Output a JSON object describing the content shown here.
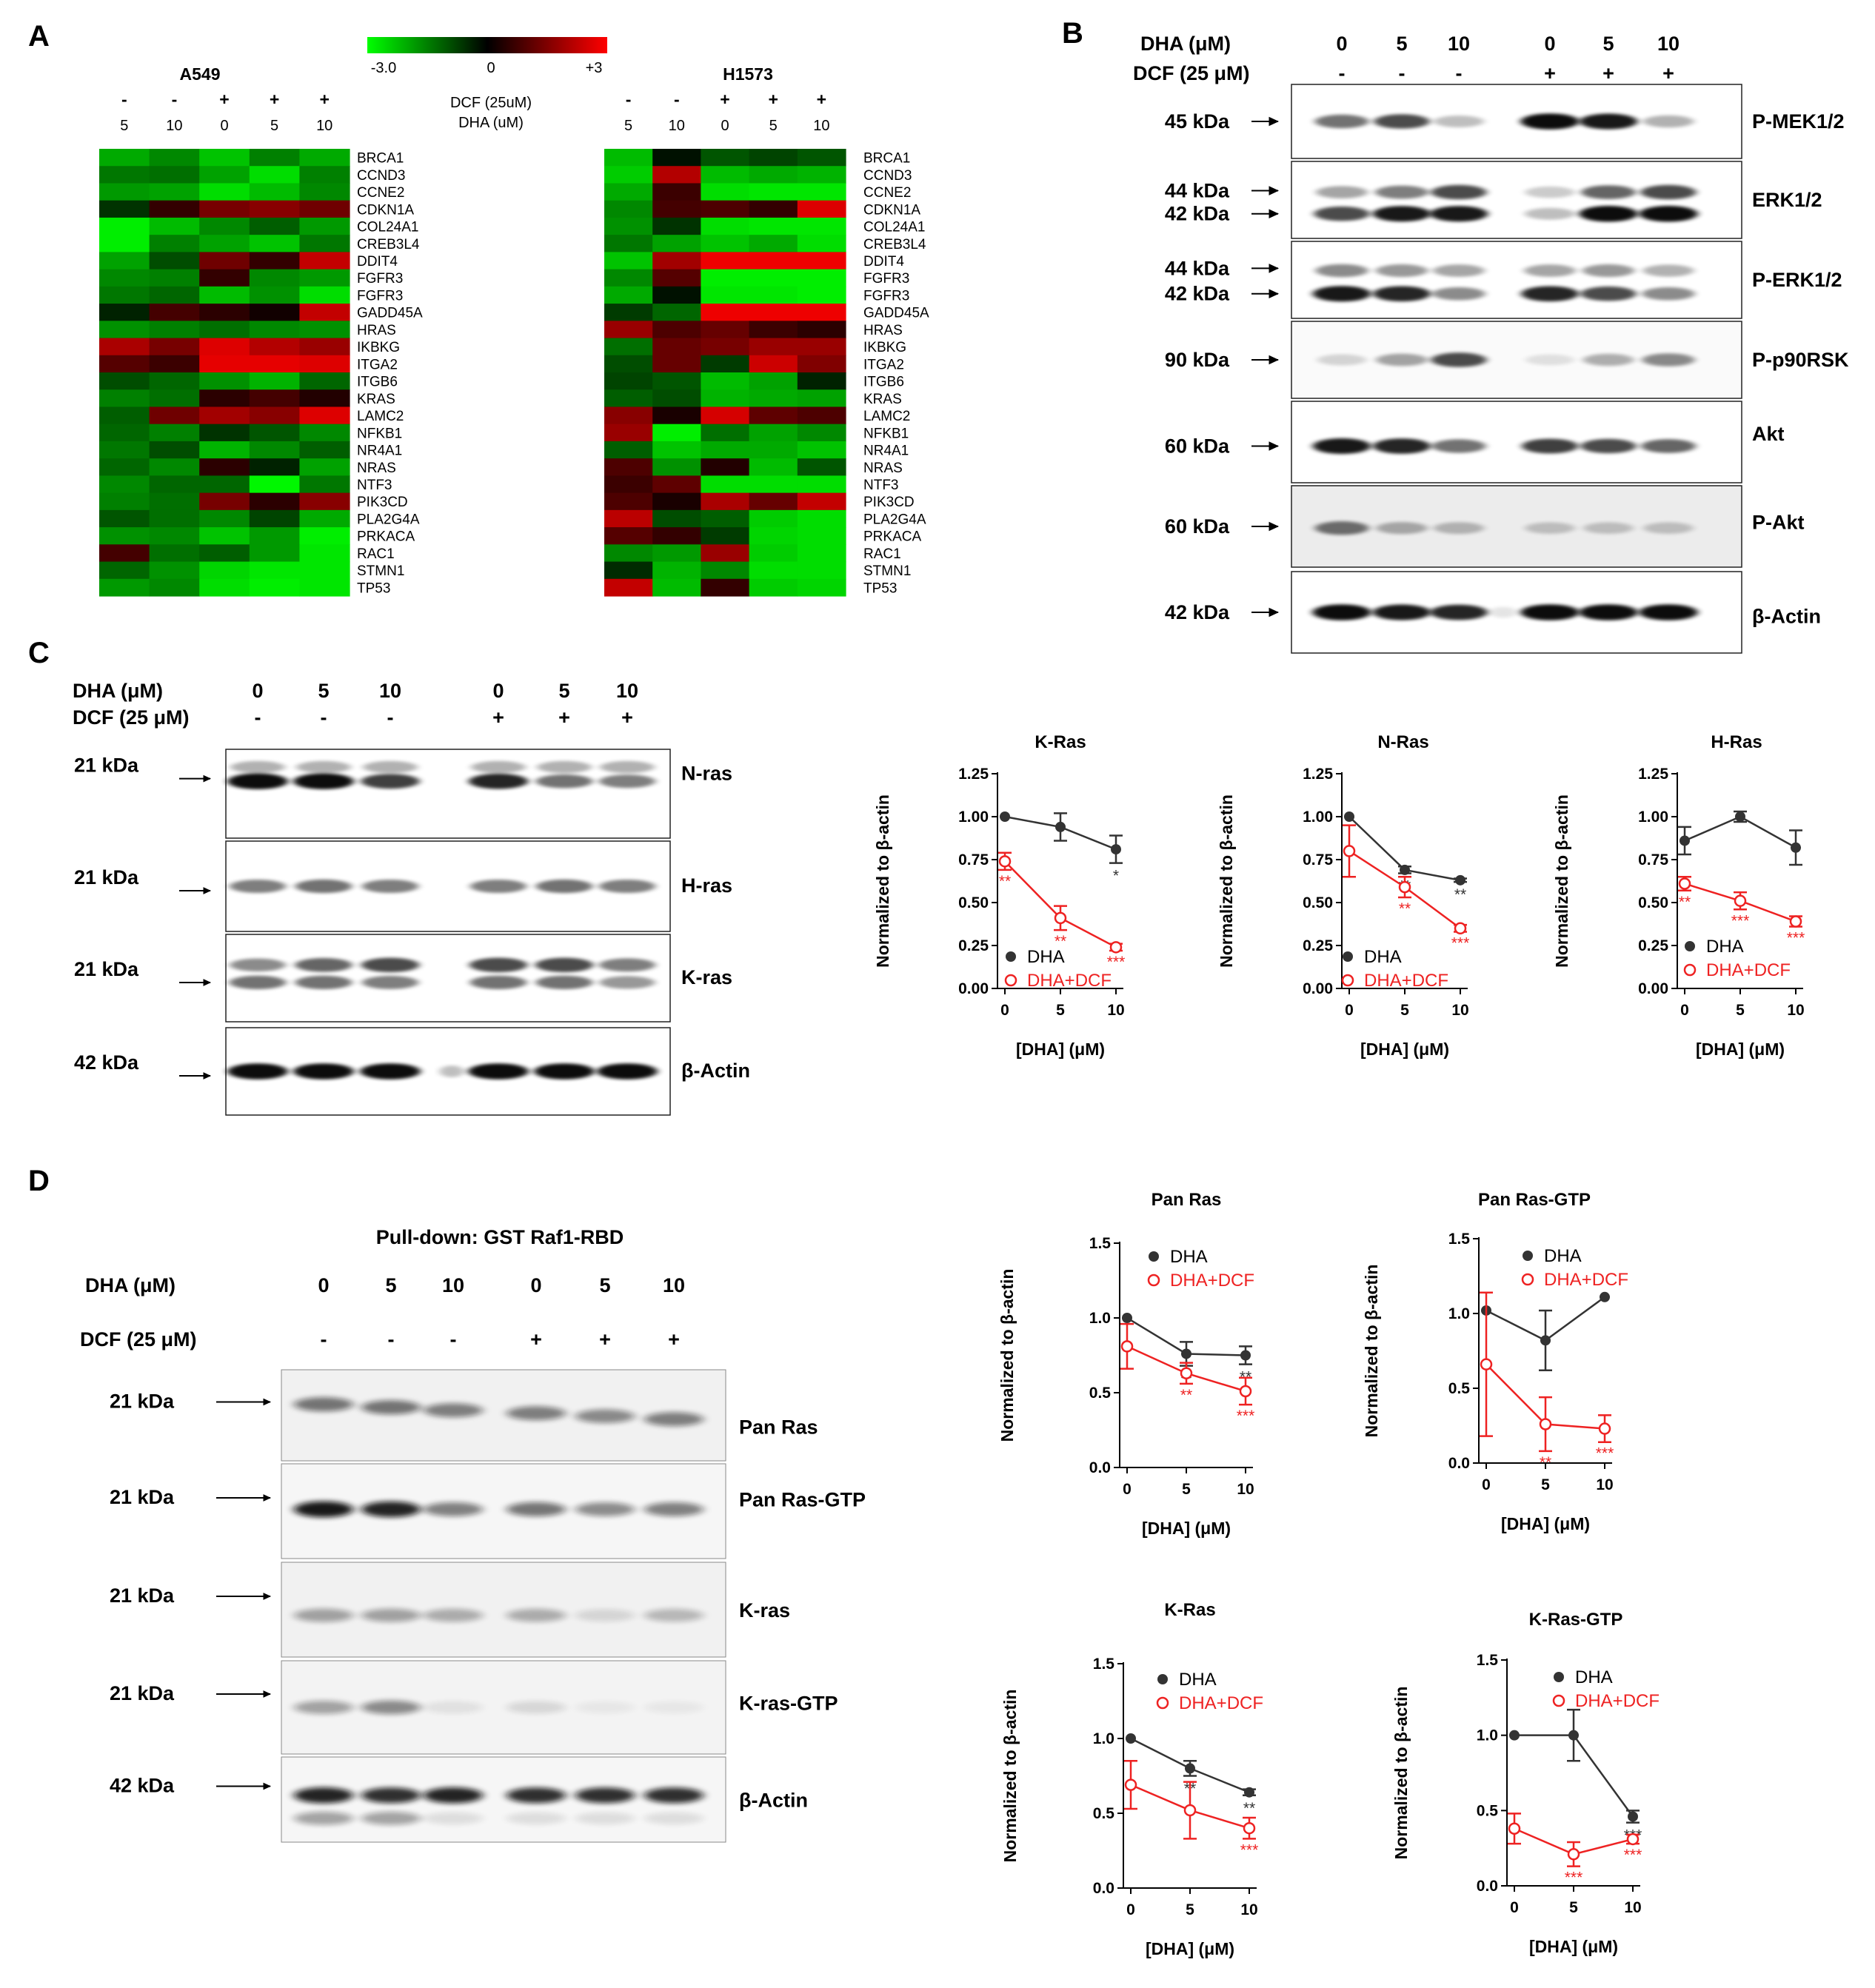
{
  "panels": {
    "A": {
      "label": "A",
      "left_title": "A549",
      "right_title": "H1573",
      "scale": {
        "min_label": "-3.0",
        "mid_label": "0",
        "max_label": "+3",
        "colors": [
          "#00ff00",
          "#000000",
          "#ff0000"
        ]
      },
      "row1_label": "DCF (25uM)",
      "row2_label": "DHA (uM)",
      "dcf_signs": [
        "-",
        "-",
        "+",
        "+",
        "+"
      ],
      "dha_values": [
        "5",
        "10",
        "0",
        "5",
        "10"
      ],
      "genes": [
        "BRCA1",
        "CCND3",
        "CCNE2",
        "CDKN1A",
        "COL24A1",
        "CREB3L4",
        "DDIT4",
        "FGFR3",
        "FGFR3",
        "GADD45A",
        "HRAS",
        "IKBKG",
        "ITGA2",
        "ITGB6",
        "KRAS",
        "LAMC2",
        "NFKB1",
        "NR4A1",
        "NRAS",
        "NTF3",
        "PIK3CD",
        "PLA2G4A",
        "PRKACA",
        "RAC1",
        "STMN1",
        "TP53"
      ],
      "heatmap_left": [
        [
          -2.0,
          -1.6,
          -2.3,
          -1.5,
          -2.0
        ],
        [
          -1.4,
          -1.3,
          -1.9,
          -2.6,
          -1.5
        ],
        [
          -1.8,
          -1.9,
          -2.6,
          -2.2,
          -1.6
        ],
        [
          -0.6,
          0.6,
          1.4,
          1.6,
          1.3
        ],
        [
          -2.8,
          -2.2,
          -1.6,
          -1.1,
          -1.8
        ],
        [
          -2.8,
          -1.5,
          -1.9,
          -2.3,
          -1.4
        ],
        [
          -1.9,
          -0.9,
          1.3,
          0.6,
          2.3
        ],
        [
          -1.6,
          -1.5,
          0.6,
          -1.6,
          -1.8
        ],
        [
          -1.4,
          -1.2,
          -2.2,
          -1.7,
          -2.6
        ],
        [
          -0.4,
          0.8,
          0.5,
          0.2,
          2.3
        ],
        [
          -1.7,
          -1.5,
          -1.3,
          -1.6,
          -1.7
        ],
        [
          2.0,
          1.4,
          2.6,
          2.1,
          1.8
        ],
        [
          1.0,
          0.7,
          2.7,
          2.7,
          2.6
        ],
        [
          -0.9,
          -1.2,
          -1.7,
          -2.1,
          -1.2
        ],
        [
          -1.5,
          -1.3,
          0.5,
          0.8,
          0.4
        ],
        [
          -1.1,
          1.3,
          1.9,
          1.6,
          2.6
        ],
        [
          -1.2,
          -1.5,
          -0.6,
          -1.0,
          -1.6
        ],
        [
          -1.4,
          -0.9,
          -2.1,
          -1.6,
          -1.1
        ],
        [
          -1.2,
          -1.6,
          0.5,
          -0.4,
          -1.9
        ],
        [
          -1.6,
          -1.2,
          -1.2,
          -2.9,
          -1.4
        ],
        [
          -1.5,
          -1.3,
          1.4,
          0.5,
          1.6
        ],
        [
          -1.0,
          -1.3,
          -1.6,
          -0.8,
          -2.0
        ],
        [
          -1.7,
          -1.6,
          -2.3,
          -1.8,
          -2.8
        ],
        [
          0.8,
          -1.3,
          -1.1,
          -1.8,
          -2.7
        ],
        [
          -1.2,
          -1.7,
          -2.5,
          -2.7,
          -2.7
        ],
        [
          -1.8,
          -1.6,
          -2.6,
          -2.8,
          -2.7
        ]
      ],
      "heatmap_right": [
        [
          -2.2,
          -0.2,
          -1.0,
          -0.8,
          -1.0
        ],
        [
          -2.4,
          2.1,
          -2.2,
          -2.0,
          -2.1
        ],
        [
          -2.0,
          0.7,
          -2.6,
          -2.7,
          -2.7
        ],
        [
          -1.6,
          0.8,
          0.9,
          0.6,
          2.6
        ],
        [
          -1.7,
          -0.6,
          -2.6,
          -2.7,
          -2.7
        ],
        [
          -1.4,
          -1.9,
          -2.3,
          -2.0,
          -2.6
        ],
        [
          -2.3,
          1.9,
          2.8,
          2.8,
          2.8
        ],
        [
          -1.6,
          1.0,
          -2.8,
          -2.8,
          -2.8
        ],
        [
          -2.0,
          -0.2,
          -2.7,
          -2.7,
          -2.8
        ],
        [
          -0.7,
          -1.2,
          2.8,
          2.8,
          2.8
        ],
        [
          1.8,
          0.9,
          1.2,
          0.7,
          0.5
        ],
        [
          -1.3,
          1.2,
          1.4,
          1.8,
          1.8
        ],
        [
          -0.9,
          1.2,
          -0.7,
          2.4,
          1.5
        ],
        [
          -0.8,
          -1.0,
          -2.2,
          -1.9,
          -0.4
        ],
        [
          -1.1,
          -0.9,
          -2.1,
          -2.0,
          -1.9
        ],
        [
          1.6,
          0.3,
          2.5,
          1.1,
          0.9
        ],
        [
          1.8,
          -2.8,
          -1.3,
          -1.9,
          -1.6
        ],
        [
          -1.1,
          -2.3,
          -2.0,
          -2.0,
          -2.3
        ],
        [
          0.9,
          -1.7,
          0.4,
          -2.2,
          -1.0
        ],
        [
          0.7,
          1.1,
          -2.6,
          -2.6,
          -2.6
        ],
        [
          0.9,
          0.3,
          2.0,
          1.2,
          2.3
        ],
        [
          2.2,
          -0.9,
          -1.1,
          -2.4,
          -2.6
        ],
        [
          1.0,
          0.6,
          -0.7,
          -2.5,
          -2.6
        ],
        [
          -1.6,
          -1.8,
          1.8,
          -2.4,
          -2.6
        ],
        [
          -0.5,
          -2.1,
          -1.6,
          -2.6,
          -2.6
        ],
        [
          2.3,
          -2.2,
          0.6,
          -2.4,
          -2.5
        ]
      ]
    },
    "B": {
      "label": "B",
      "dha_label": "DHA (μM)",
      "dcf_label": "DCF (25 μM)",
      "dha_values": [
        "0",
        "5",
        "10",
        "0",
        "5",
        "10"
      ],
      "dcf_signs": [
        "-",
        "-",
        "-",
        "+",
        "+",
        "+"
      ],
      "blots": [
        {
          "name": "P-MEK1/2",
          "mw": [
            "45 kDa"
          ]
        },
        {
          "name": "ERK1/2",
          "mw": [
            "44 kDa",
            "42 kDa"
          ]
        },
        {
          "name": "P-ERK1/2",
          "mw": [
            "44 kDa",
            "42 kDa"
          ]
        },
        {
          "name": "P-p90RSK",
          "mw": [
            "90 kDa"
          ]
        },
        {
          "name": "Akt",
          "mw": [
            "60 kDa"
          ]
        },
        {
          "name": "P-Akt",
          "mw": [
            "60 kDa"
          ]
        },
        {
          "name": "β-Actin",
          "mw": [
            "42 kDa"
          ]
        }
      ]
    },
    "C": {
      "label": "C",
      "dha_label": "DHA (μM)",
      "dcf_label": "DCF (25 μM)",
      "dha_values": [
        "0",
        "5",
        "10",
        "0",
        "5",
        "10"
      ],
      "dcf_signs": [
        "-",
        "-",
        "-",
        "+",
        "+",
        "+"
      ],
      "blots": [
        {
          "name": "N-ras",
          "mw": "21 kDa"
        },
        {
          "name": "H-ras",
          "mw": "21 kDa"
        },
        {
          "name": "K-ras",
          "mw": "21 kDa"
        },
        {
          "name": "β-Actin",
          "mw": "42 kDa"
        }
      ]
    },
    "D": {
      "label": "D",
      "pulldown_label": "Pull-down: GST Raf1-RBD",
      "dha_label": "DHA (μM)",
      "dcf_label": "DCF (25 μM)",
      "dha_values": [
        "0",
        "5",
        "10",
        "0",
        "5",
        "10"
      ],
      "dcf_signs": [
        "-",
        "-",
        "-",
        "+",
        "+",
        "+"
      ],
      "blots": [
        {
          "name": "Pan Ras",
          "mw": "21 kDa"
        },
        {
          "name": "Pan Ras-GTP",
          "mw": "21 kDa"
        },
        {
          "name": "K-ras",
          "mw": "21 kDa"
        },
        {
          "name": "K-ras-GTP",
          "mw": "21 kDa"
        },
        {
          "name": "β-Actin",
          "mw": "42 kDa"
        }
      ]
    }
  },
  "chart_data": [
    {
      "type": "line",
      "title": "K-Ras",
      "xlabel": "[DHA] (μM)",
      "ylabel": "Normalized to β-actin",
      "x": [
        0,
        5,
        10
      ],
      "ylim": [
        0,
        1.25
      ],
      "yticks": [
        "0.00",
        "0.25",
        "0.50",
        "0.75",
        "1.00",
        "1.25"
      ],
      "series": [
        {
          "name": "DHA",
          "values": [
            1.0,
            0.94,
            0.81
          ],
          "errors": [
            0.0,
            0.08,
            0.08
          ],
          "sig": [
            "",
            "",
            "*"
          ],
          "color": "#333333",
          "marker": "filled"
        },
        {
          "name": "DHA+DCF",
          "values": [
            0.74,
            0.41,
            0.24
          ],
          "errors": [
            0.05,
            0.07,
            0.02
          ],
          "sig": [
            "**",
            "**",
            "***"
          ],
          "color": "#ee2222",
          "marker": "open"
        }
      ]
    },
    {
      "type": "line",
      "title": "N-Ras",
      "xlabel": "[DHA] (μM)",
      "ylabel": "Normalized to β-actin",
      "x": [
        0,
        5,
        10
      ],
      "ylim": [
        0,
        1.25
      ],
      "yticks": [
        "0.00",
        "0.25",
        "0.50",
        "0.75",
        "1.00",
        "1.25"
      ],
      "series": [
        {
          "name": "DHA",
          "values": [
            1.0,
            0.69,
            0.63
          ],
          "errors": [
            0.0,
            0.02,
            0.01
          ],
          "sig": [
            "",
            "**",
            "**"
          ],
          "color": "#333333",
          "marker": "filled"
        },
        {
          "name": "DHA+DCF",
          "values": [
            0.8,
            0.59,
            0.35
          ],
          "errors": [
            0.15,
            0.06,
            0.02
          ],
          "sig": [
            "",
            "**",
            "***"
          ],
          "color": "#ee2222",
          "marker": "open"
        }
      ]
    },
    {
      "type": "line",
      "title": "H-Ras",
      "xlabel": "[DHA] (μM)",
      "ylabel": "Normalized to β-actin",
      "x": [
        0,
        5,
        10
      ],
      "ylim": [
        0,
        1.25
      ],
      "yticks": [
        "0.00",
        "0.25",
        "0.50",
        "0.75",
        "1.00",
        "1.25"
      ],
      "series": [
        {
          "name": "DHA",
          "values": [
            0.86,
            1.0,
            0.82
          ],
          "errors": [
            0.08,
            0.03,
            0.1
          ],
          "sig": [
            "",
            "",
            ""
          ],
          "color": "#333333",
          "marker": "filled"
        },
        {
          "name": "DHA+DCF",
          "values": [
            0.61,
            0.51,
            0.39
          ],
          "errors": [
            0.04,
            0.05,
            0.03
          ],
          "sig": [
            "**",
            "***",
            "***"
          ],
          "color": "#ee2222",
          "marker": "open"
        }
      ]
    },
    {
      "type": "line",
      "title": "Pan Ras",
      "xlabel": "[DHA] (μM)",
      "ylabel": "Normalized to β-actin",
      "x": [
        0,
        5,
        10
      ],
      "ylim": [
        0,
        1.5
      ],
      "yticks": [
        "0.0",
        "0.5",
        "1.0",
        "1.5"
      ],
      "series": [
        {
          "name": "DHA",
          "values": [
            1.0,
            0.76,
            0.75
          ],
          "errors": [
            0.0,
            0.08,
            0.06
          ],
          "sig": [
            "",
            "**",
            "**"
          ],
          "color": "#333333",
          "marker": "filled"
        },
        {
          "name": "DHA+DCF",
          "values": [
            0.81,
            0.63,
            0.51
          ],
          "errors": [
            0.15,
            0.07,
            0.09
          ],
          "sig": [
            "",
            "**",
            "***"
          ],
          "color": "#ee2222",
          "marker": "open"
        }
      ]
    },
    {
      "type": "line",
      "title": "Pan Ras-GTP",
      "xlabel": "[DHA] (μM)",
      "ylabel": "Normalized to β-actin",
      "x": [
        0,
        5,
        10
      ],
      "ylim": [
        0,
        1.5
      ],
      "yticks": [
        "0.0",
        "0.5",
        "1.0",
        "1.5"
      ],
      "series": [
        {
          "name": "DHA",
          "values": [
            1.02,
            0.82,
            1.11
          ],
          "errors": [
            0.0,
            0.2,
            0.0
          ],
          "sig": [
            "",
            "",
            ""
          ],
          "color": "#333333",
          "marker": "filled"
        },
        {
          "name": "DHA+DCF",
          "values": [
            0.66,
            0.26,
            0.23
          ],
          "errors": [
            0.48,
            0.18,
            0.09
          ],
          "sig": [
            "",
            "**",
            "***"
          ],
          "color": "#ee2222",
          "marker": "open"
        }
      ]
    },
    {
      "type": "line",
      "title": "K-Ras",
      "xlabel": "[DHA] (μM)",
      "ylabel": "Normalized to β-actin",
      "x": [
        0,
        5,
        10
      ],
      "ylim": [
        0,
        1.5
      ],
      "yticks": [
        "0.0",
        "0.5",
        "1.0",
        "1.5"
      ],
      "series": [
        {
          "name": "DHA",
          "values": [
            1.0,
            0.8,
            0.64
          ],
          "errors": [
            0.0,
            0.05,
            0.02
          ],
          "sig": [
            "",
            "**",
            "**"
          ],
          "color": "#333333",
          "marker": "filled"
        },
        {
          "name": "DHA+DCF",
          "values": [
            0.69,
            0.52,
            0.4
          ],
          "errors": [
            0.16,
            0.19,
            0.07
          ],
          "sig": [
            "",
            "",
            "***"
          ],
          "color": "#ee2222",
          "marker": "open"
        }
      ]
    },
    {
      "type": "line",
      "title": "K-Ras-GTP",
      "xlabel": "[DHA] (μM)",
      "ylabel": "Normalized to β-actin",
      "x": [
        0,
        5,
        10
      ],
      "ylim": [
        0,
        1.5
      ],
      "yticks": [
        "0.0",
        "0.5",
        "1.0",
        "1.5"
      ],
      "series": [
        {
          "name": "DHA",
          "values": [
            1.0,
            1.0,
            0.46
          ],
          "errors": [
            0.0,
            0.17,
            0.04
          ],
          "sig": [
            "",
            "",
            "***"
          ],
          "color": "#333333",
          "marker": "filled"
        },
        {
          "name": "DHA+DCF",
          "values": [
            0.38,
            0.21,
            0.31
          ],
          "errors": [
            0.1,
            0.08,
            0.03
          ],
          "sig": [
            "",
            "***",
            "***"
          ],
          "color": "#ee2222",
          "marker": "open"
        }
      ]
    }
  ]
}
